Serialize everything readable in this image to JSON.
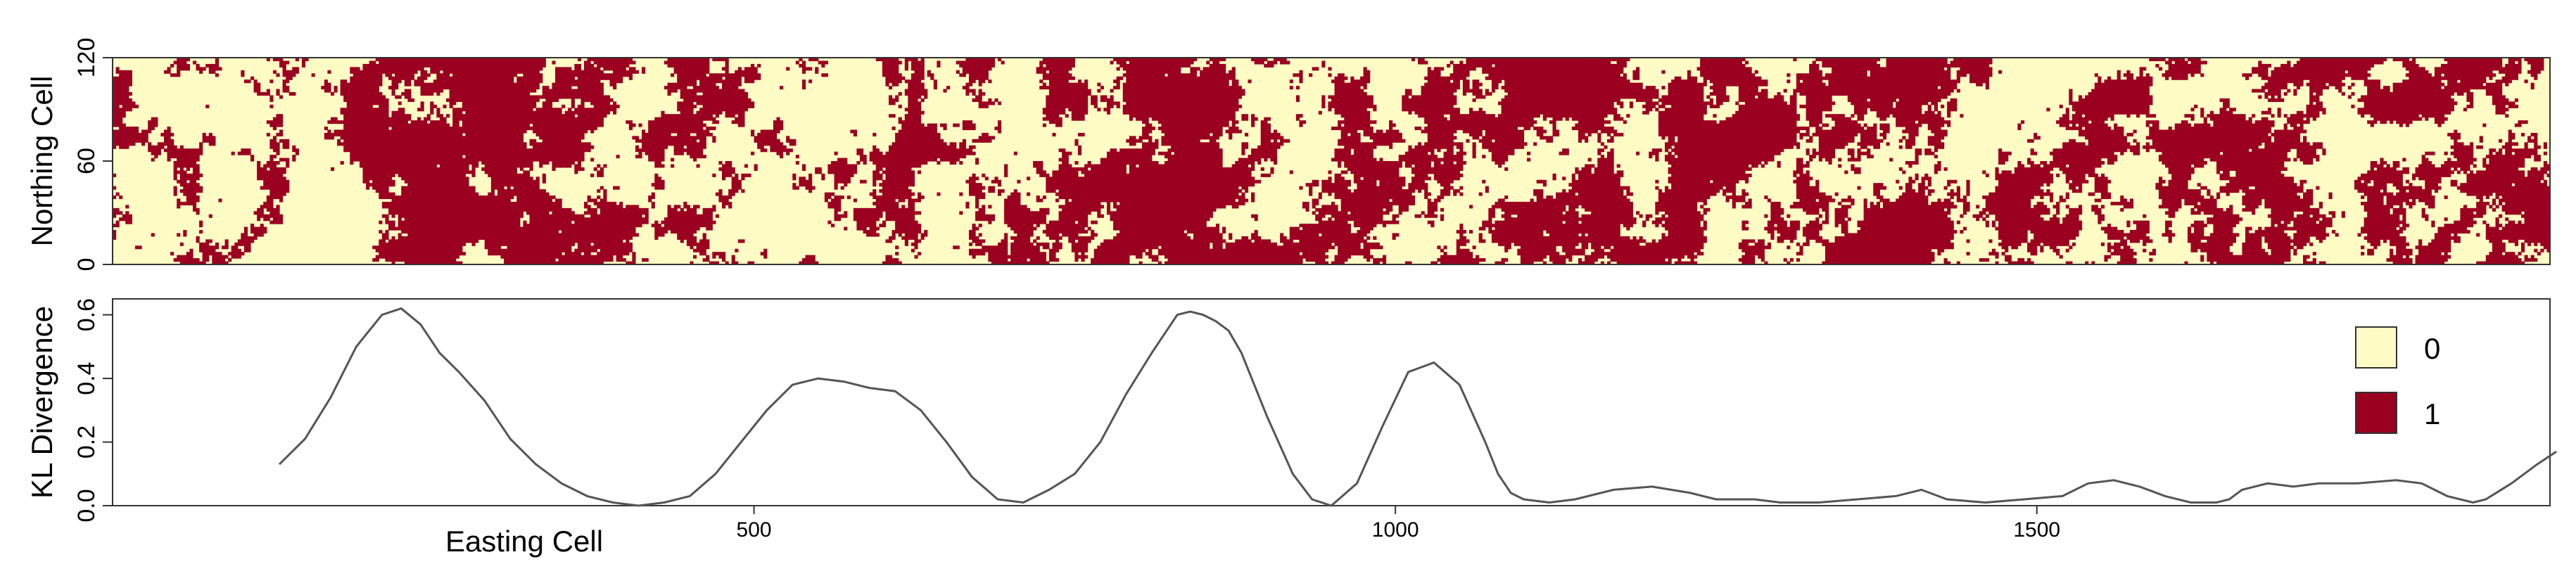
{
  "chart_data": [
    {
      "type": "heatmap",
      "panel": "top",
      "ylabel": "Northing Cell",
      "ylim": [
        0,
        120
      ],
      "y_ticks": [
        "0",
        "60",
        "120"
      ],
      "x_cells": 1900,
      "classes": [
        {
          "value": "0",
          "color": "#fffbc4"
        },
        {
          "value": "1",
          "color": "#9b0021"
        }
      ],
      "class1_fraction_profile": {
        "x": [
          0,
          100,
          180,
          230,
          300,
          330,
          400,
          500,
          580,
          640,
          700,
          760,
          800,
          860,
          900,
          950,
          1000,
          1040,
          1100,
          1200,
          1300,
          1400,
          1500,
          1550,
          1600,
          1700,
          1800,
          1850,
          1900
        ],
        "fraction": [
          0.32,
          0.3,
          0.28,
          0.68,
          0.78,
          0.75,
          0.55,
          0.27,
          0.32,
          0.45,
          0.25,
          0.38,
          0.82,
          0.82,
          0.55,
          0.25,
          0.33,
          0.52,
          0.62,
          0.58,
          0.6,
          0.62,
          0.52,
          0.45,
          0.55,
          0.55,
          0.45,
          0.6,
          0.58
        ]
      },
      "legend": [
        "0",
        "1"
      ],
      "grid": false
    },
    {
      "type": "line",
      "panel": "bottom",
      "xlabel": "Easting Cell",
      "ylabel": "KL Divergence",
      "xlim": [
        0,
        1900
      ],
      "ylim": [
        0,
        0.65
      ],
      "x_ticks": [
        "500",
        "1000",
        "1500"
      ],
      "y_ticks": [
        "0.0",
        "0.2",
        "0.4",
        "0.6"
      ],
      "series": [
        {
          "color": "#555555",
          "x": [
            130,
            150,
            170,
            190,
            210,
            225,
            240,
            255,
            270,
            290,
            310,
            330,
            350,
            370,
            390,
            410,
            430,
            450,
            470,
            490,
            510,
            530,
            550,
            570,
            590,
            610,
            630,
            650,
            670,
            690,
            710,
            730,
            750,
            770,
            790,
            810,
            830,
            840,
            850,
            860,
            870,
            880,
            900,
            920,
            935,
            950,
            970,
            990,
            1010,
            1030,
            1050,
            1070,
            1080,
            1090,
            1100,
            1120,
            1140,
            1170,
            1200,
            1230,
            1250,
            1280,
            1300,
            1330,
            1360,
            1390,
            1410,
            1430,
            1460,
            1490,
            1520,
            1540,
            1560,
            1580,
            1600,
            1620,
            1640,
            1650,
            1660,
            1680,
            1700,
            1720,
            1750,
            1780,
            1800,
            1820,
            1840,
            1850,
            1870,
            1890,
            1905
          ],
          "values": [
            0.13,
            0.21,
            0.34,
            0.5,
            0.6,
            0.62,
            0.57,
            0.48,
            0.42,
            0.33,
            0.21,
            0.13,
            0.07,
            0.03,
            0.01,
            0.0,
            0.01,
            0.03,
            0.1,
            0.2,
            0.3,
            0.38,
            0.4,
            0.39,
            0.37,
            0.36,
            0.3,
            0.2,
            0.09,
            0.02,
            0.01,
            0.05,
            0.1,
            0.2,
            0.35,
            0.48,
            0.6,
            0.61,
            0.6,
            0.58,
            0.55,
            0.48,
            0.28,
            0.1,
            0.02,
            0.0,
            0.07,
            0.25,
            0.42,
            0.45,
            0.38,
            0.2,
            0.1,
            0.04,
            0.02,
            0.01,
            0.02,
            0.05,
            0.06,
            0.04,
            0.02,
            0.02,
            0.01,
            0.01,
            0.02,
            0.03,
            0.05,
            0.02,
            0.01,
            0.02,
            0.03,
            0.07,
            0.08,
            0.06,
            0.03,
            0.01,
            0.01,
            0.02,
            0.05,
            0.07,
            0.06,
            0.07,
            0.07,
            0.08,
            0.07,
            0.03,
            0.01,
            0.02,
            0.07,
            0.13,
            0.17
          ]
        }
      ],
      "legend": {
        "placement": "top-right",
        "entries": [
          {
            "label": "0",
            "color": "#fffbc4"
          },
          {
            "label": "1",
            "color": "#9b0021"
          }
        ]
      },
      "grid": false
    }
  ]
}
